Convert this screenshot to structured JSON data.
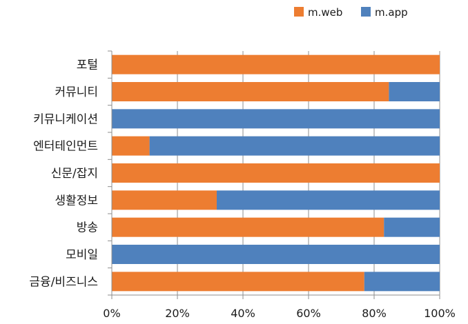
{
  "chart_data": {
    "type": "bar",
    "orientation": "horizontal",
    "stacked": true,
    "categories": [
      "포털",
      "커뮤니티",
      "키뮤니케이션",
      "엔터테인먼트",
      "신문/잡지",
      "생활정보",
      "방송",
      "모비일",
      "금융/비즈니스"
    ],
    "series": [
      {
        "name": "m.web",
        "color": "#ED7D31",
        "values": [
          100,
          84.5,
          0,
          11.5,
          100,
          32,
          83,
          0,
          77
        ]
      },
      {
        "name": "m.app",
        "color": "#4F81BD",
        "values": [
          0,
          15.5,
          100,
          88.5,
          0,
          68,
          17,
          100,
          23
        ]
      }
    ],
    "xlim": [
      0,
      100
    ],
    "xticks": [
      "0%",
      "20%",
      "40%",
      "60%",
      "80%",
      "100%"
    ],
    "grid": true,
    "legend_position": "top-right"
  }
}
